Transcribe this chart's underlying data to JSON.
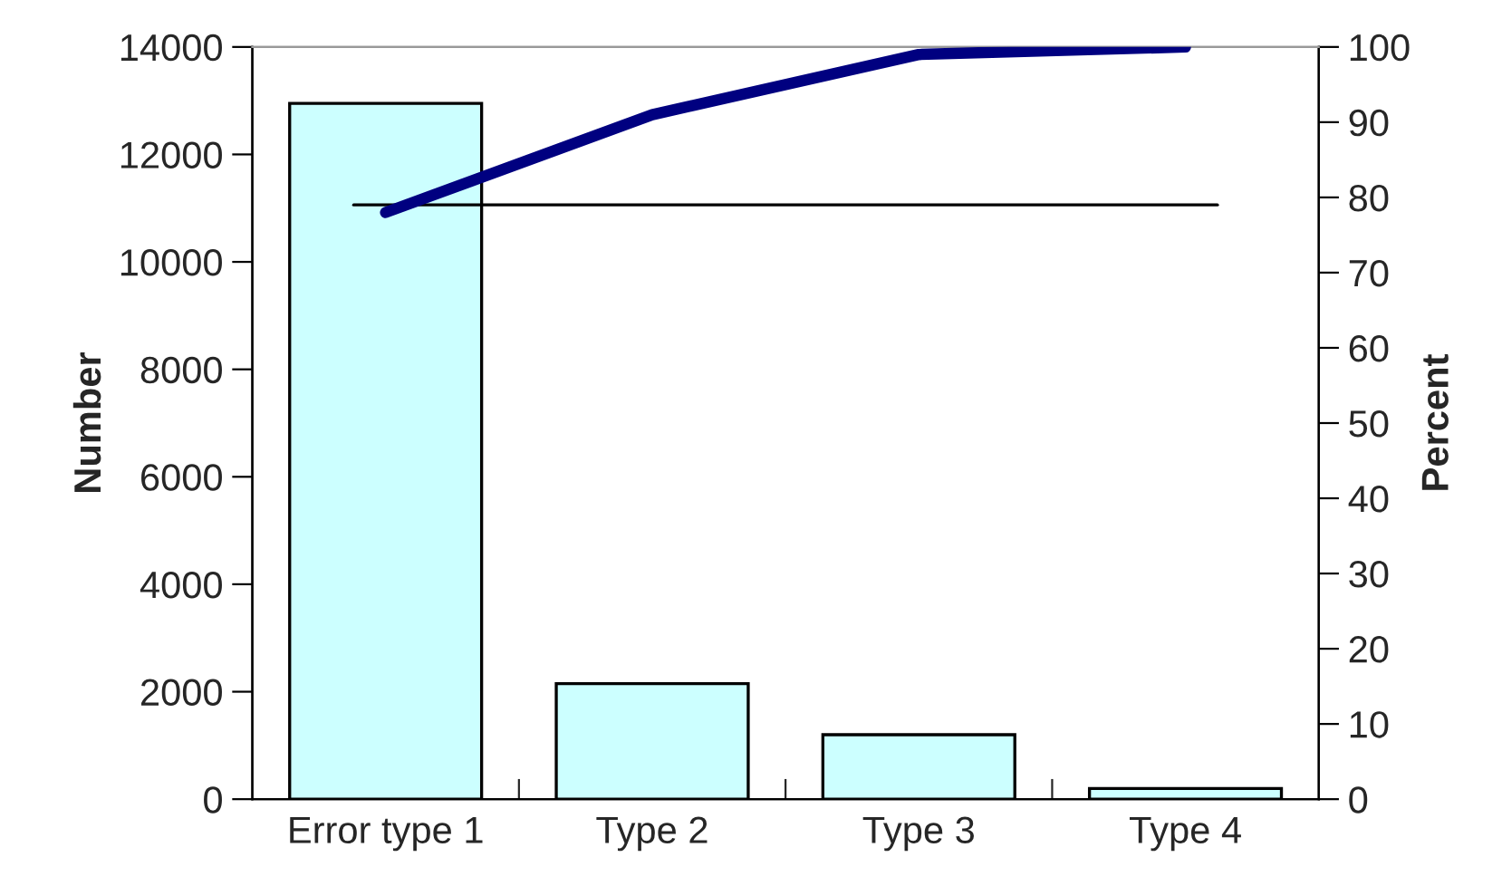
{
  "chart_data": {
    "type": "bar",
    "ylabel": "Number",
    "y2label": "Percent",
    "categories": [
      "Error type 1",
      "Type 2",
      "Type 3",
      "Type 4"
    ],
    "series": [
      {
        "color": "#ccffff",
        "values": [
          12950,
          2150,
          1200,
          200
        ]
      },
      {
        "type": "line",
        "color": "#000080",
        "axis": "y2",
        "values": [
          78,
          91,
          99,
          100
        ]
      }
    ],
    "ylim": [
      0,
      14000
    ],
    "yticks": [
      0,
      2000,
      4000,
      6000,
      8000,
      10000,
      12000,
      14000
    ],
    "y2lim": [
      0,
      100
    ],
    "y2ticks": [
      0,
      10,
      20,
      30,
      40,
      50,
      60,
      70,
      80,
      90,
      100
    ],
    "ref_lines": [
      {
        "axis": "y2",
        "value": 79,
        "color": "#000000"
      }
    ],
    "grid": false,
    "legend": false,
    "marker": "none"
  }
}
